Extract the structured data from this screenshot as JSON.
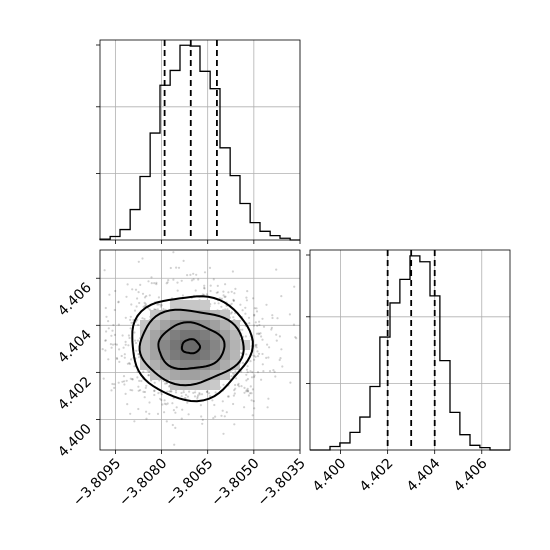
{
  "chart_data": {
    "type": "corner",
    "grid": true,
    "parameters": [
      {
        "name": "",
        "range": [
          -3.81,
          -3.8035
        ],
        "tick_labels": [
          "−3.8095",
          "−3.8080",
          "−3.8065",
          "−3.8050",
          "−3.8035"
        ],
        "ticks": [
          -3.8095,
          -3.808,
          -3.8065,
          -3.805,
          -3.8035
        ],
        "quantiles": [
          -3.8079,
          -3.80705,
          -3.8062
        ],
        "histogram": {
          "bin_edges": [
            -3.81,
            -3.80967,
            -3.80935,
            -3.80902,
            -3.8087,
            -3.80837,
            -3.80805,
            -3.80772,
            -3.8074,
            -3.80707,
            -3.80675,
            -3.80642,
            -3.8061,
            -3.80577,
            -3.80545,
            -3.80512,
            -3.8048,
            -3.80447,
            -3.80415,
            -3.80382,
            -3.8035
          ],
          "counts": [
            1,
            4,
            12,
            35,
            73,
            123,
            178,
            195,
            224,
            223,
            194,
            174,
            106,
            74,
            42,
            20,
            10,
            5,
            2,
            0
          ]
        }
      },
      {
        "name": "",
        "range": [
          4.3987,
          4.4072
        ],
        "tick_labels": [
          "4.400",
          "4.402",
          "4.404",
          "4.406"
        ],
        "ticks": [
          4.4,
          4.402,
          4.404,
          4.406
        ],
        "quantiles": [
          4.402,
          4.403,
          4.404
        ],
        "histogram": {
          "bin_edges": [
            4.3987,
            4.39913,
            4.39955,
            4.39997,
            4.4004,
            4.40082,
            4.40125,
            4.40167,
            4.4021,
            4.40252,
            4.40295,
            4.40337,
            4.4038,
            4.40422,
            4.40465,
            4.40507,
            4.4055,
            4.40592,
            4.40635,
            4.40677,
            4.4072
          ],
          "counts": [
            0,
            0,
            3,
            6,
            15,
            28,
            54,
            96,
            125,
            145,
            165,
            160,
            131,
            76,
            32,
            13,
            4,
            2,
            0,
            0
          ]
        }
      }
    ],
    "joint": {
      "center": [
        -3.80705,
        4.4031
      ],
      "contour_levels": [
        "1σ-inner",
        "0.5σ",
        "1σ",
        "1.5σ"
      ]
    }
  }
}
